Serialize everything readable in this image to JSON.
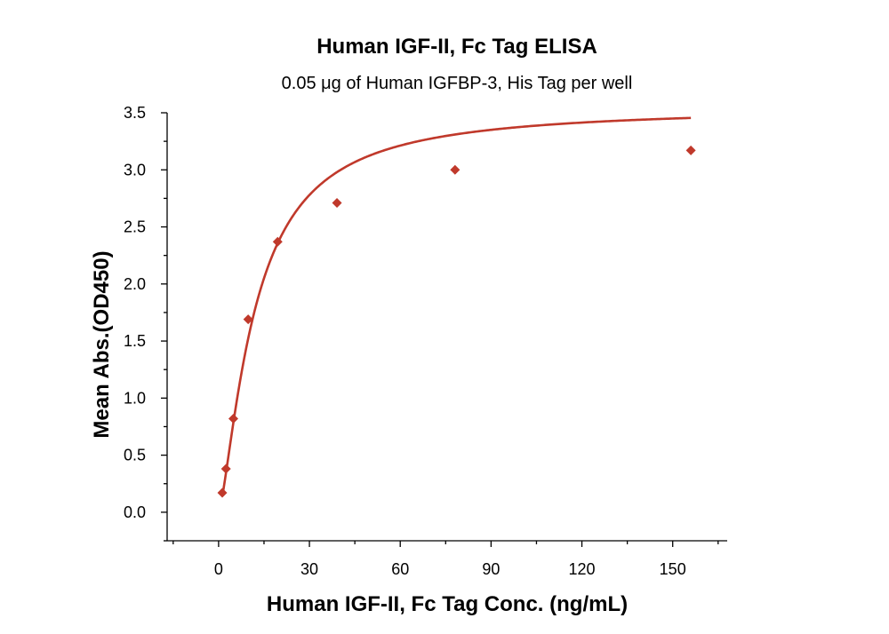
{
  "chart_data": {
    "type": "scatter",
    "title": "Human IGF-II, Fc Tag ELISA",
    "subtitle": "0.05 μg of Human IGFBP-3, His Tag per well",
    "xlabel": "Human IGF-II, Fc Tag Conc. (ng/mL)",
    "ylabel": "Mean Abs.(OD450)",
    "xlim": [
      -17,
      168
    ],
    "ylim": [
      -0.25,
      3.5
    ],
    "x_ticks": [
      0,
      30,
      60,
      90,
      120,
      150
    ],
    "x_tick_labels": [
      "0",
      "30",
      "60",
      "90",
      "120",
      "150"
    ],
    "y_ticks": [
      0.0,
      0.5,
      1.0,
      1.5,
      2.0,
      2.5,
      3.0,
      3.5
    ],
    "y_tick_labels": [
      "0.0",
      "0.5",
      "1.0",
      "1.5",
      "2.0",
      "2.5",
      "3.0",
      "3.5"
    ],
    "grid": false,
    "legend": "none",
    "color": "#c0392b",
    "series": [
      {
        "marker": "diamond",
        "x": [
          1.22,
          2.44,
          4.88,
          9.77,
          19.5,
          39.1,
          78.1,
          156
        ],
        "y": [
          0.17,
          0.38,
          0.82,
          1.69,
          2.37,
          2.71,
          3.0,
          3.17
        ]
      }
    ],
    "fit": {
      "type": "4PL curve",
      "a": 0.0,
      "d": 3.55,
      "c": 12.0,
      "b": 1.4
    }
  }
}
